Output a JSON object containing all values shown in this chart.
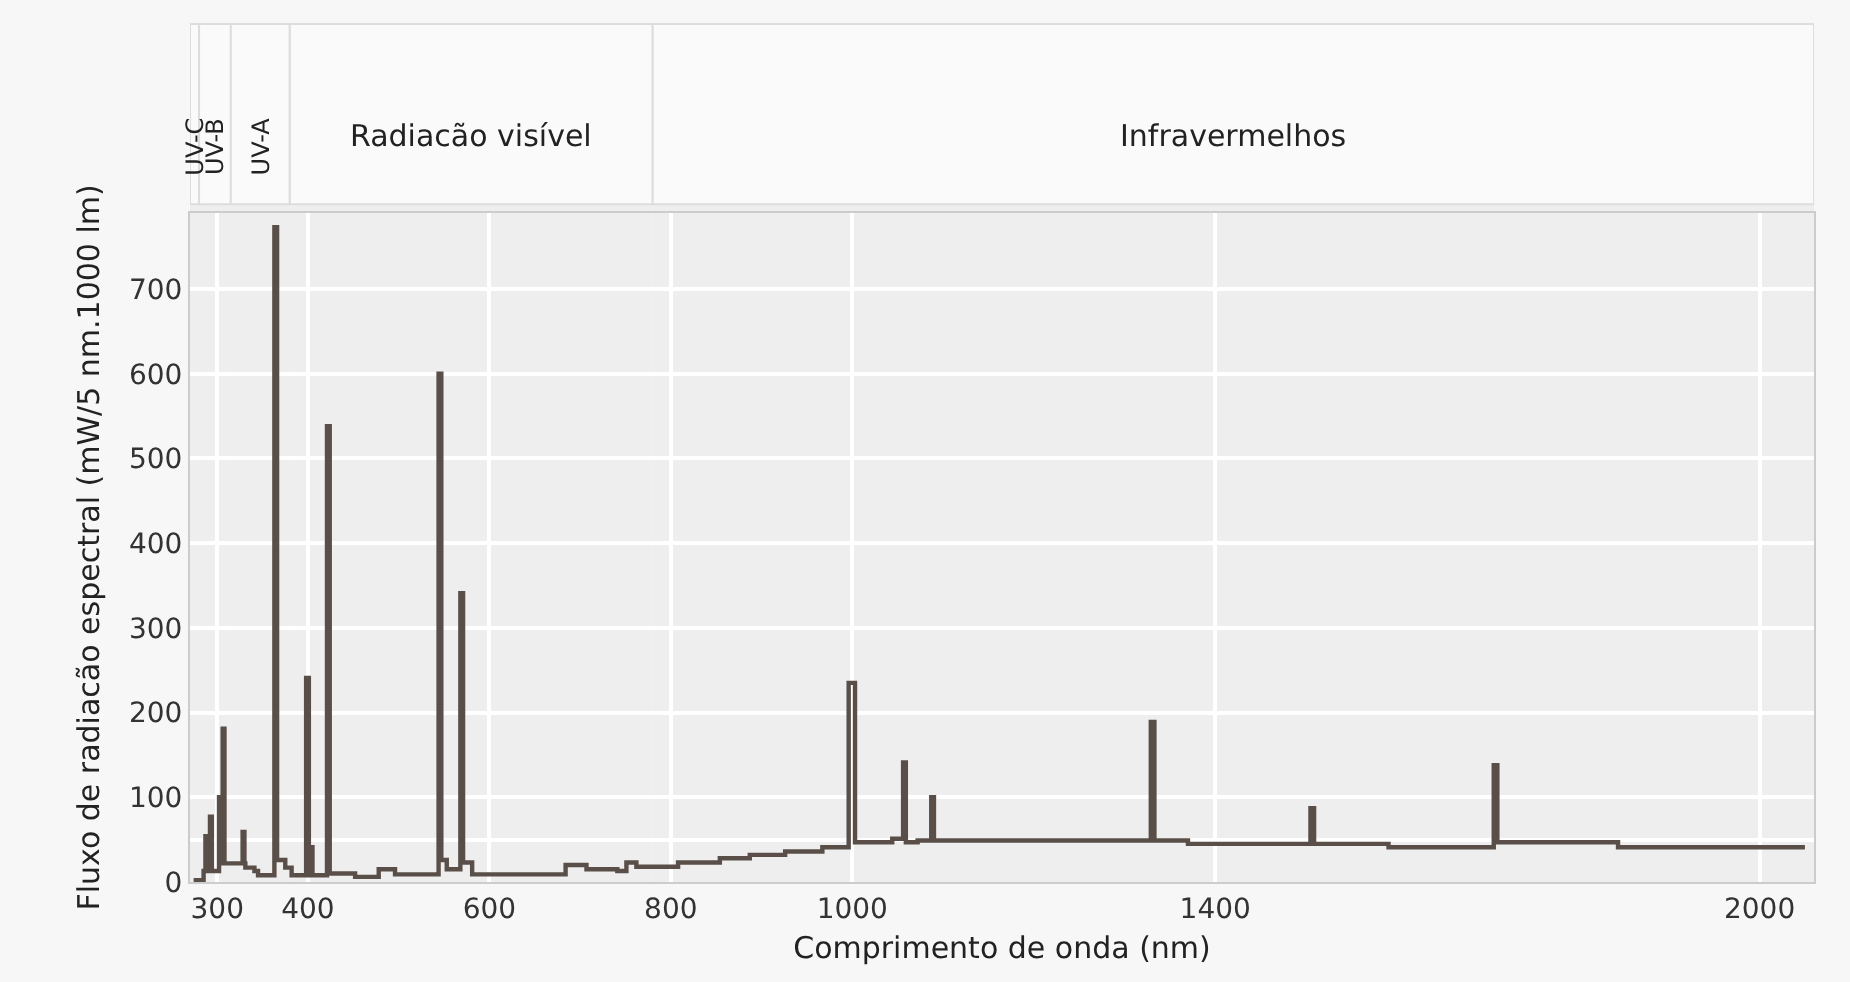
{
  "chart_data": {
    "type": "step",
    "xlabel": "Comprimento de onda (nm)",
    "ylabel": "Fluxo de radiacão espectral (mW/5 nm.1000 lm)",
    "x": [
      274,
      285,
      287,
      289,
      292,
      294,
      302,
      304,
      306,
      308,
      328,
      330,
      331,
      341,
      345,
      363,
      366,
      375,
      382,
      398,
      401,
      403,
      405,
      421,
      424,
      452,
      478,
      496,
      544,
      547,
      553,
      568,
      571,
      581,
      684,
      707,
      741,
      751,
      762,
      808,
      854,
      887,
      926,
      967,
      996,
      1003,
      1044,
      1056,
      1059,
      1072,
      1087,
      1090,
      1329,
      1333,
      1370,
      1505,
      1509,
      1591,
      1707,
      1711,
      1844,
      2050
    ],
    "series": [
      {
        "color": "#5a4f48",
        "values": [
          2,
          13,
          54,
          13,
          77,
          13,
          100,
          22,
          181,
          22,
          59,
          22,
          17,
          13,
          8,
          773,
          26,
          17,
          8,
          241,
          8,
          41,
          8,
          538,
          10,
          6,
          15,
          9,
          600,
          26,
          15,
          341,
          23,
          9,
          20,
          15,
          13,
          23,
          18,
          23,
          28,
          32,
          36,
          41,
          235,
          47,
          51,
          141,
          47,
          49,
          100,
          49,
          189,
          49,
          45,
          87,
          45,
          41,
          138,
          47,
          41,
          41
        ]
      }
    ],
    "xlim": [
      270,
      2060
    ],
    "xticks": [
      300,
      400,
      600,
      800,
      1000,
      1400,
      2000
    ],
    "ylim": [
      0,
      790
    ],
    "yticks": [
      0,
      {
        "value": 50,
        "label": null
      },
      100,
      200,
      300,
      400,
      500,
      600,
      700
    ],
    "bands": [
      {
        "axis": "x",
        "from": 200,
        "to": 280,
        "label": "UV-C"
      },
      {
        "axis": "x",
        "from": 280,
        "to": 315,
        "label": "UV-B"
      },
      {
        "axis": "x",
        "from": 315,
        "to": 380,
        "label": "UV-A"
      },
      {
        "axis": "x",
        "from": 380,
        "to": 780,
        "label": "Radiacão visível"
      },
      {
        "axis": "x",
        "from": 780,
        "to": 2060,
        "label": "Infravermelhos"
      }
    ],
    "grid": true,
    "marker": "none",
    "line_style": "solid"
  }
}
